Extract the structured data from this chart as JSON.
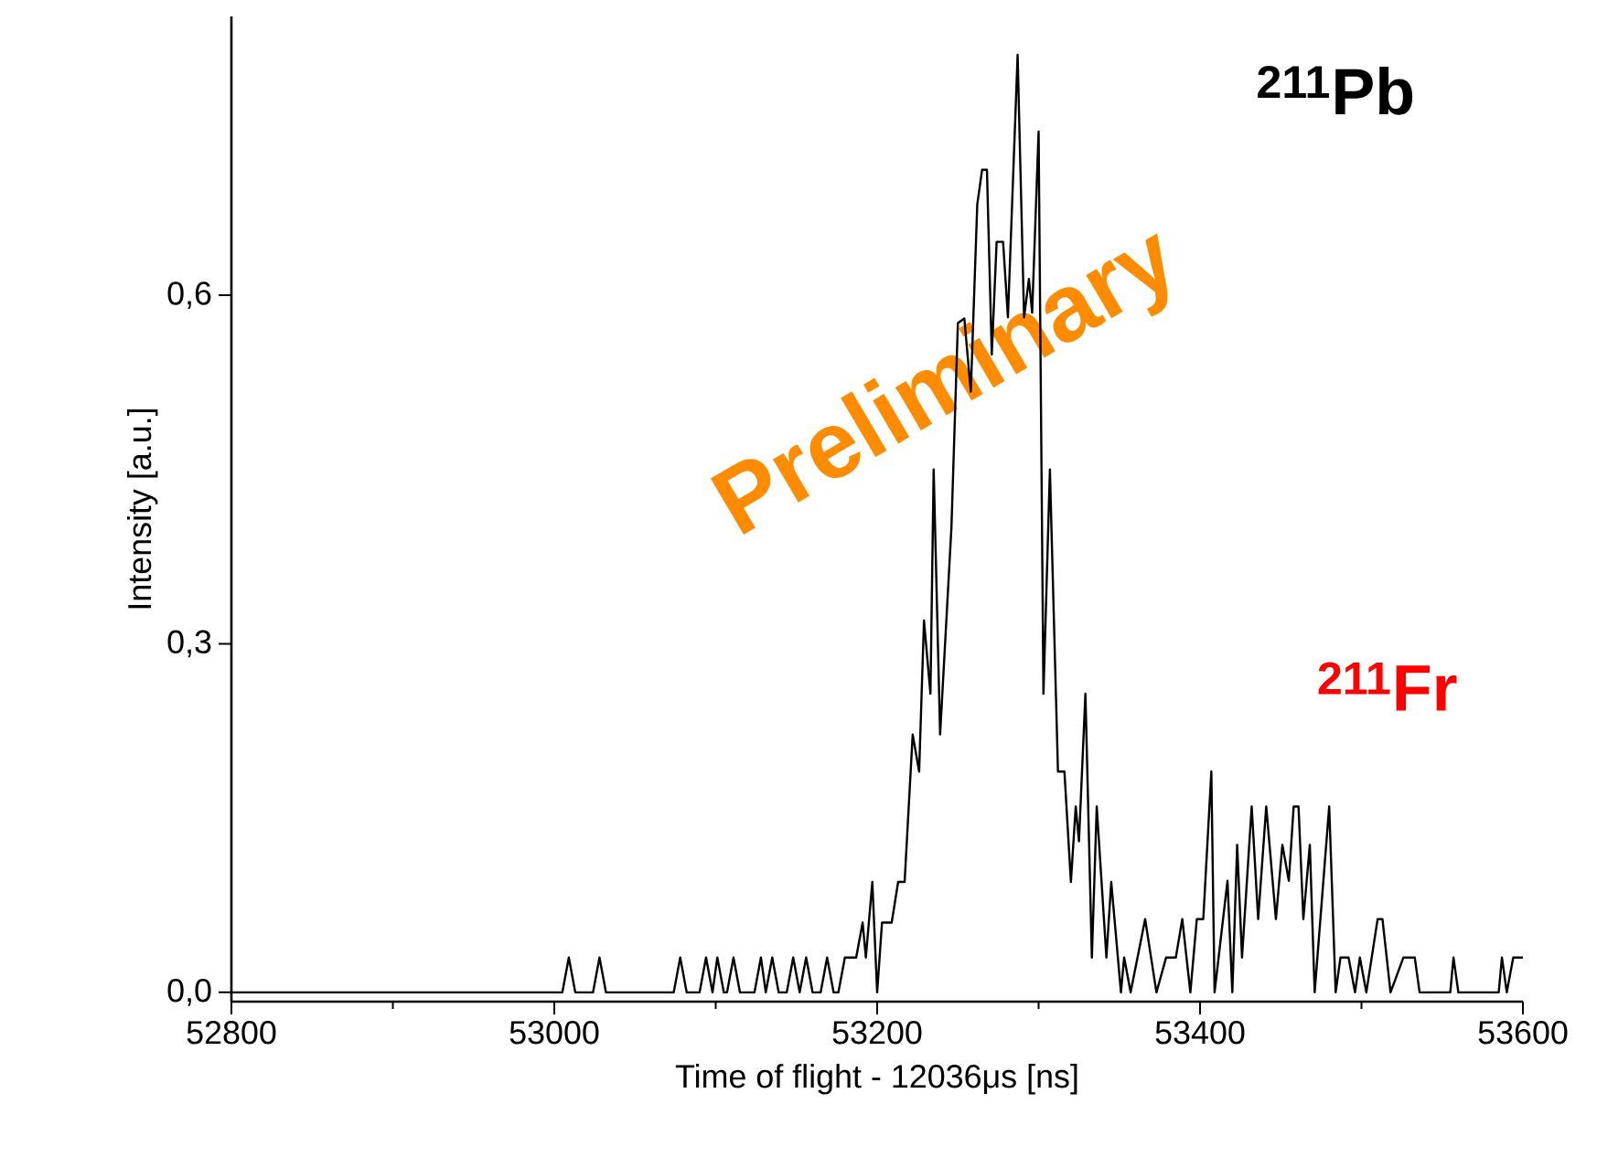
{
  "chart_data": {
    "type": "line",
    "xlabel": "Time of flight - 12036μs [ns]",
    "ylabel": "Intensity [a.u.]",
    "annotations": [
      "$^{211}$Pb",
      "$^{211}$Fr",
      "Preliminary"
    ],
    "xlim": [
      52800,
      53600
    ],
    "ylim": [
      -0.008,
      0.84
    ],
    "xticks": [
      52800,
      53000,
      53200,
      53400,
      53600
    ],
    "yticks": [
      {
        "value": 0,
        "label": "0,0"
      },
      {
        "value": 0.3,
        "label": "0,3"
      },
      {
        "value": 0.6,
        "label": "0,6"
      }
    ],
    "grid": false,
    "marker": "none",
    "line_style": "solid",
    "series": [
      {
        "color": "#000000",
        "x": [
          52800,
          53005,
          53009,
          53013,
          53024,
          53028,
          53032,
          53074,
          53078,
          53082,
          53090,
          53094,
          53098,
          53101,
          53105,
          53107,
          53111,
          53115,
          53124,
          53128,
          53131,
          53135,
          53139,
          53144,
          53148,
          53152,
          53156,
          53160,
          53165,
          53169,
          53173,
          53176,
          53180,
          53187,
          53191,
          53193,
          53197,
          53200,
          53203,
          53209,
          53213,
          53217,
          53222,
          53226,
          53229,
          53233,
          53235,
          53239,
          53246,
          53250,
          53254,
          53258,
          53262,
          53265,
          53268,
          53271,
          53274,
          53278,
          53281,
          53287,
          53291,
          53294,
          53296,
          53300,
          53303,
          53307,
          53312,
          53316,
          53320,
          53323,
          53325,
          53329,
          53333,
          53336,
          53342,
          53345,
          53351,
          53353,
          53357,
          53366,
          53373,
          53379,
          53385,
          53389,
          53394,
          53398,
          53402,
          53407,
          53409,
          53417,
          53420,
          53423,
          53426,
          53432,
          53436,
          53441,
          53447,
          53451,
          53455,
          53458,
          53461,
          53464,
          53468,
          53471,
          53480,
          53484,
          53487,
          53492,
          53496,
          53499,
          53503,
          53510,
          53513,
          53518,
          53526,
          53533,
          53536,
          53555,
          53557,
          53560,
          53585,
          53587,
          53590,
          53594,
          53600
        ],
        "values": [
          0,
          0,
          0.03,
          0,
          0,
          0.03,
          0,
          0,
          0.03,
          0,
          0,
          0.03,
          0,
          0.03,
          0,
          0,
          0.03,
          0,
          0,
          0.03,
          0,
          0.03,
          0,
          0,
          0.03,
          0,
          0.03,
          0,
          0,
          0.03,
          0,
          0,
          0.03,
          0.03,
          0.06,
          0.03,
          0.095,
          0,
          0.06,
          0.06,
          0.095,
          0.095,
          0.222,
          0.19,
          0.32,
          0.257,
          0.45,
          0.222,
          0.4,
          0.576,
          0.58,
          0.517,
          0.678,
          0.708,
          0.708,
          0.549,
          0.646,
          0.646,
          0.581,
          0.807,
          0.581,
          0.614,
          0.585,
          0.741,
          0.257,
          0.45,
          0.19,
          0.19,
          0.095,
          0.16,
          0.13,
          0.257,
          0.03,
          0.16,
          0.03,
          0.095,
          0,
          0.03,
          0,
          0.063,
          0,
          0.03,
          0.03,
          0.063,
          0,
          0.063,
          0.063,
          0.19,
          0,
          0.096,
          0,
          0.127,
          0.03,
          0.16,
          0.063,
          0.16,
          0.063,
          0.127,
          0.096,
          0.16,
          0.16,
          0.063,
          0.127,
          0,
          0.16,
          0,
          0.03,
          0.03,
          0,
          0.03,
          0,
          0.063,
          0.063,
          0,
          0.03,
          0.03,
          0,
          0,
          0.03,
          0,
          0,
          0.03,
          0,
          0.03,
          0.03
        ]
      }
    ]
  }
}
